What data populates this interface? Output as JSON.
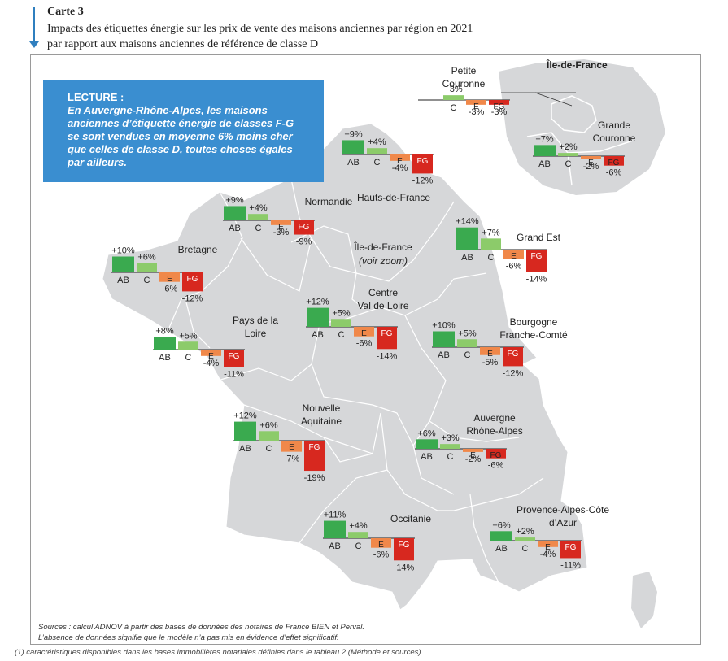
{
  "header": {
    "label": "Carte 3",
    "title_line1": "Impacts des étiquettes énergie sur les prix de vente des maisons anciennes par région en 2021",
    "title_line2": "par rapport aux maisons anciennes de référence de classe D"
  },
  "lecture": {
    "title": "LECTURE :",
    "lines": [
      "En Auvergne-Rhône-Alpes, les maisons",
      "anciennes d’étiquette énergie de classes F-G",
      "se sont vendues en moyenne 6% moins cher",
      "que celles de classe D, toutes choses égales",
      "par ailleurs."
    ]
  },
  "colors": {
    "AB": "#3aaa4f",
    "C": "#8ccb6a",
    "E": "#f0884a",
    "FG": "#d7281f",
    "map_fill": "#d6d7d9",
    "lecture_bg": "#3a8ed0"
  },
  "map_labels": {
    "idf_zoom_title": "Île-de-France",
    "idf_center_line1": "Île-de-France",
    "idf_center_line2": "(voir zoom)"
  },
  "chart_data": {
    "type": "bar",
    "categories": [
      "AB",
      "C",
      "E",
      "FG"
    ],
    "unit": "%",
    "regions": [
      {
        "name_lines": [
          "Petite",
          "Couronne"
        ],
        "values": [
          null,
          3,
          -3,
          -3
        ]
      },
      {
        "name_lines": [
          "Grande",
          "Couronne"
        ],
        "values": [
          7,
          2,
          -2,
          -6
        ]
      },
      {
        "name_lines": [
          "Hauts-de-France"
        ],
        "values": [
          9,
          4,
          -4,
          -12
        ]
      },
      {
        "name_lines": [
          "Normandie"
        ],
        "values": [
          9,
          4,
          -3,
          -9
        ]
      },
      {
        "name_lines": [
          "Grand Est"
        ],
        "values": [
          14,
          7,
          -6,
          -14
        ]
      },
      {
        "name_lines": [
          "Bretagne"
        ],
        "values": [
          10,
          6,
          -6,
          -12
        ]
      },
      {
        "name_lines": [
          "Centre",
          "Val de Loire"
        ],
        "values": [
          12,
          5,
          -6,
          -14
        ]
      },
      {
        "name_lines": [
          "Pays de la",
          "Loire"
        ],
        "values": [
          8,
          5,
          -4,
          -11
        ]
      },
      {
        "name_lines": [
          "Bourgogne",
          "Franche-Comté"
        ],
        "values": [
          10,
          5,
          -5,
          -12
        ]
      },
      {
        "name_lines": [
          "Nouvelle",
          "Aquitaine"
        ],
        "values": [
          12,
          6,
          -7,
          -19
        ]
      },
      {
        "name_lines": [
          "Auvergne",
          "Rhône-Alpes"
        ],
        "values": [
          6,
          3,
          -2,
          -6
        ]
      },
      {
        "name_lines": [
          "Occitanie"
        ],
        "values": [
          11,
          4,
          -6,
          -14
        ]
      },
      {
        "name_lines": [
          "Provence-Alpes-Côte",
          "d’Azur"
        ],
        "values": [
          6,
          2,
          -4,
          -11
        ]
      }
    ]
  },
  "sources": {
    "line1": "Sources : calcul ADNOV à partir des bases de données des notaires de France BIEN et Perval.",
    "line2": "L’absence de données signifie que le modèle n’a pas mis en évidence d’effet significatif."
  },
  "footnote": "(1) caractéristiques disponibles dans les bases immobilières notariales définies dans le tableau 2 (Méthode et sources)"
}
